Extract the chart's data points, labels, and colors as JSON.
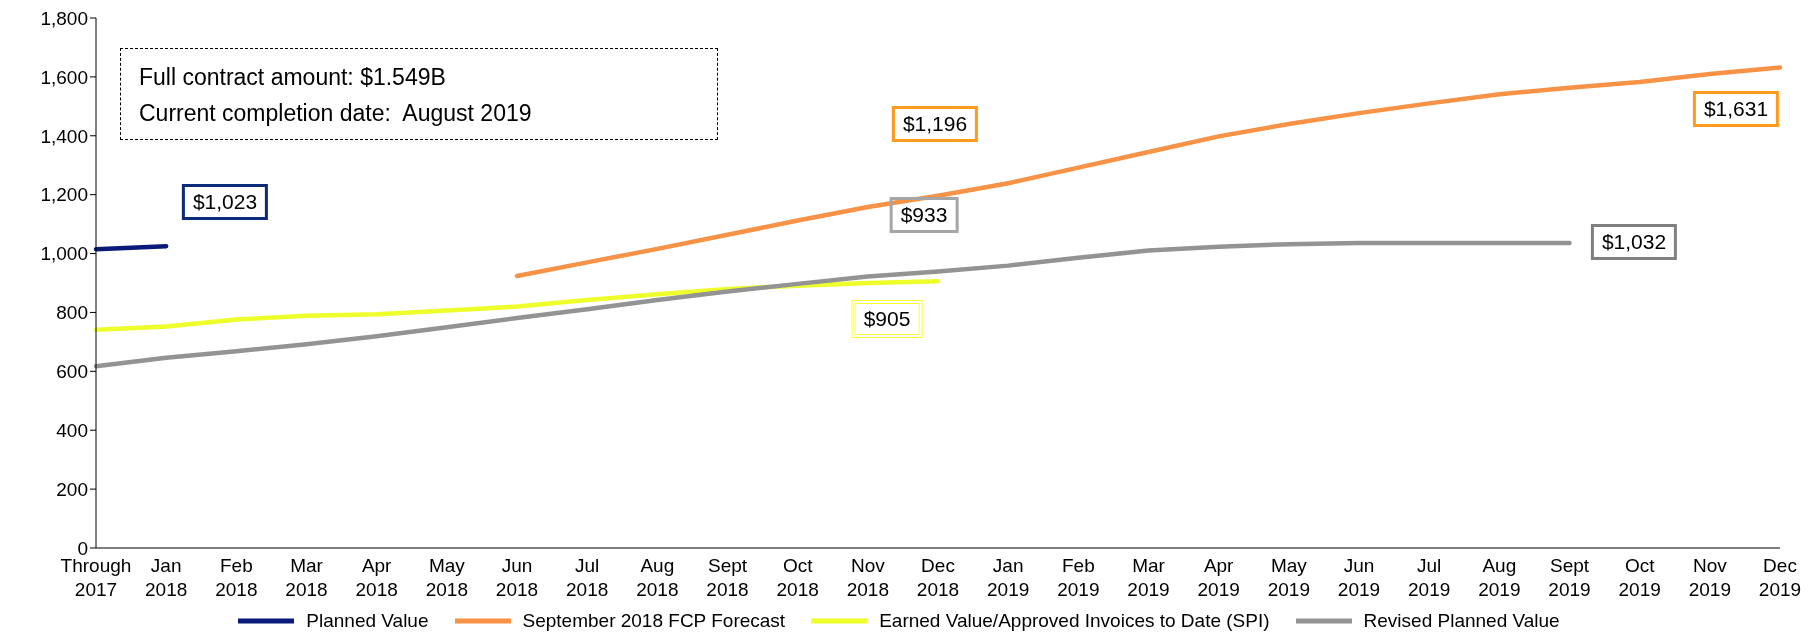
{
  "chart_data": {
    "type": "line",
    "categories": [
      "Through 2017",
      "Jan 2018",
      "Feb 2018",
      "Mar 2018",
      "Apr 2018",
      "May 2018",
      "Jun 2018",
      "Jul 2018",
      "Aug 2018",
      "Sept 2018",
      "Oct 2018",
      "Nov 2018",
      "Dec 2018",
      "Jan 2019",
      "Feb 2019",
      "Mar 2019",
      "Apr 2019",
      "May 2019",
      "Jun 2019",
      "Jul 2019",
      "Aug 2019",
      "Sept 2019",
      "Oct 2019",
      "Nov 2019",
      "Dec 2019"
    ],
    "series": [
      {
        "name": "Planned Value",
        "color": "#0a1a7a",
        "values": [
          1015,
          1025,
          null,
          null,
          null,
          null,
          null,
          null,
          null,
          null,
          null,
          null,
          null,
          null,
          null,
          null,
          null,
          null,
          null,
          null,
          null,
          null,
          null,
          null,
          null
        ]
      },
      {
        "name": "September 2018 FCP Forecast",
        "color": "#f79246",
        "values": [
          null,
          null,
          null,
          null,
          null,
          null,
          924,
          970,
          1016,
          1064,
          1112,
          1158,
          1196,
          1239,
          1292,
          1345,
          1398,
          1440,
          1477,
          1510,
          1541,
          1563,
          1583,
          1610,
          1632
        ]
      },
      {
        "name": "Earned Value/Approved Invoices to Date (SPI)",
        "color": "#eeff2a",
        "values": [
          741,
          752,
          776,
          789,
          794,
          807,
          820,
          842,
          862,
          880,
          891,
          900,
          906,
          null,
          null,
          null,
          null,
          null,
          null,
          null,
          null,
          null,
          null,
          null,
          null
        ]
      },
      {
        "name": "Revised Planned Value",
        "color": "#939393",
        "values": [
          617,
          646,
          668,
          692,
          719,
          750,
          781,
          811,
          842,
          871,
          897,
          922,
          939,
          959,
          986,
          1010,
          1023,
          1032,
          1036,
          1036,
          1036,
          1036,
          null,
          null,
          null
        ]
      }
    ],
    "ylim": [
      0,
      1800
    ],
    "yticks": [
      0,
      200,
      400,
      600,
      800,
      {
        "value": 1000,
        "label": "1,000"
      },
      {
        "value": 1200,
        "label": "1,200"
      },
      {
        "value": 1400,
        "label": "1,400"
      },
      {
        "value": 1600,
        "label": "1,600"
      },
      {
        "value": 1800,
        "label": "1,800"
      }
    ],
    "legend": "bottom",
    "line_style": "solid",
    "marker": "none",
    "annotations": [
      "Full contract amount: $1.549B",
      "Current completion date:  August 2019",
      "$1,023",
      "$1,196",
      "$933",
      "$905",
      "$1,631",
      "$1,032"
    ]
  }
}
